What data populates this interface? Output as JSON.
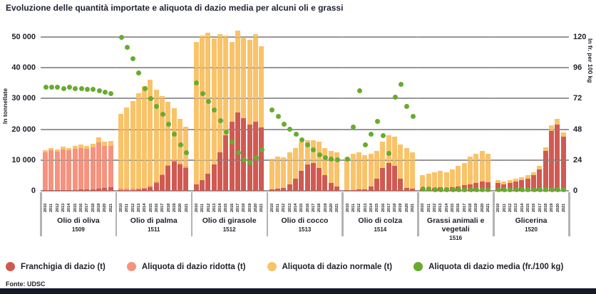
{
  "title": "Evoluzione delle quantità importate e aliquota di dazio media per alcuni oli e grassi",
  "source": "Fonte: UDSC",
  "colors": {
    "franchigia": "#cf5a52",
    "ridotta": "#f5937e",
    "normale": "#f9c36a",
    "media": "#67ab2f",
    "grid": "#9b9b9b",
    "footer_bar": "#141a29",
    "text": "#20222c"
  },
  "legend": [
    {
      "label": "Franchigia di dazio (t)",
      "color_key": "franchigia"
    },
    {
      "label": "Aliquota di dazio ridotta (t)",
      "color_key": "ridotta"
    },
    {
      "label": "Aliquota di dazio normale (t)",
      "color_key": "normale"
    },
    {
      "label": "Aliquota di dazio media (fr./100 kg)",
      "color_key": "media"
    }
  ],
  "chart_data": {
    "type": "bar",
    "stacked": true,
    "grid": true,
    "legend_position": "bottom",
    "left_axis": {
      "label": "In tonnellate",
      "ticks": [
        "50 000",
        "40 000",
        "30 000",
        "20 000",
        "10 000",
        "0"
      ],
      "max": 50000
    },
    "right_axis": {
      "label": "In fr. per 100 kg",
      "ticks": [
        "120",
        "96",
        "72",
        "48",
        "24",
        "0"
      ],
      "max": 120
    },
    "years": [
      "2010",
      "2011",
      "2012",
      "2013",
      "2014",
      "2015",
      "2016",
      "2017",
      "2018",
      "2019",
      "2020",
      "2021"
    ],
    "series_names": {
      "franchigia": "Franchigia di dazio (t)",
      "ridotta": "Aliquota di dazio ridotta (t)",
      "normale": "Aliquota di dazio normale (t)",
      "media": "Aliquota di dazio media (fr./100 kg)"
    },
    "groups": [
      {
        "label": "Olio di oliva",
        "code": "1509",
        "franchigia": [
          250,
          250,
          250,
          250,
          300,
          350,
          400,
          450,
          550,
          700,
          900,
          1100
        ],
        "ridotta": [
          12200,
          12900,
          12500,
          13100,
          12800,
          13300,
          13600,
          13100,
          13600,
          15100,
          13700,
          13500
        ],
        "normale": [
          700,
          800,
          750,
          900,
          850,
          1000,
          1100,
          1050,
          1150,
          1600,
          1300,
          1500
        ],
        "media": [
          81,
          81,
          81,
          80,
          81,
          80,
          80,
          79,
          79,
          78,
          77,
          76
        ]
      },
      {
        "label": "Olio di palma",
        "code": "1511",
        "franchigia": [
          200,
          200,
          300,
          400,
          600,
          1200,
          2500,
          5000,
          8000,
          9500,
          8500,
          7500
        ],
        "ridotta": [
          400,
          400,
          400,
          400,
          400,
          400,
          400,
          400,
          400,
          400,
          300,
          300
        ],
        "normale": [
          24500,
          26500,
          28500,
          31000,
          33000,
          34500,
          30000,
          25500,
          20500,
          17000,
          14500,
          13000
        ],
        "media": [
          120,
          112,
          103,
          92,
          80,
          72,
          66,
          60,
          52,
          44,
          36,
          30
        ]
      },
      {
        "label": "Olio di girasole",
        "code": "1512",
        "franchigia": [
          2000,
          3500,
          5500,
          8500,
          12500,
          18000,
          22500,
          25500,
          23500,
          21500,
          22500,
          20500
        ],
        "ridotta": [
          0,
          0,
          0,
          0,
          0,
          0,
          0,
          0,
          0,
          0,
          0,
          0
        ],
        "normale": [
          46500,
          47000,
          46000,
          41000,
          38500,
          32500,
          26000,
          26500,
          26500,
          27500,
          28500,
          26500
        ],
        "media": [
          84,
          76,
          70,
          63,
          55,
          46,
          38,
          30,
          24,
          22,
          26,
          32
        ]
      },
      {
        "label": "Olio di cocco",
        "code": "1513",
        "franchigia": [
          500,
          700,
          1000,
          2000,
          4000,
          6500,
          8500,
          9000,
          7500,
          5000,
          2500,
          1500
        ],
        "ridotta": [
          0,
          0,
          0,
          0,
          0,
          0,
          0,
          0,
          0,
          0,
          0,
          0
        ],
        "normale": [
          10000,
          10500,
          10000,
          10500,
          10000,
          9500,
          8000,
          7500,
          8500,
          9000,
          10500,
          11000
        ],
        "media": [
          63,
          58,
          52,
          48,
          44,
          40,
          36,
          32,
          28,
          26,
          25,
          24
        ]
      },
      {
        "label": "Olio di colza",
        "code": "1514",
        "franchigia": [
          300,
          300,
          400,
          500,
          1500,
          4000,
          7500,
          9000,
          8000,
          4000,
          1000,
          600
        ],
        "ridotta": [
          0,
          0,
          0,
          0,
          0,
          0,
          0,
          0,
          0,
          0,
          0,
          0
        ],
        "normale": [
          10700,
          11700,
          12100,
          11000,
          10500,
          9000,
          8500,
          9000,
          9500,
          11000,
          13000,
          12000
        ],
        "media": [
          25,
          50,
          78,
          36,
          44,
          54,
          43,
          29,
          73,
          83,
          66,
          58
        ]
      },
      {
        "label": "Grassi animali e vegetali",
        "code": "1516",
        "franchigia": [
          800,
          900,
          1000,
          1100,
          1000,
          1200,
          1500,
          1800,
          2200,
          2600,
          3000,
          2800
        ],
        "ridotta": [
          0,
          0,
          0,
          0,
          0,
          0,
          0,
          0,
          0,
          0,
          0,
          0
        ],
        "normale": [
          4200,
          4600,
          5000,
          5400,
          5000,
          5800,
          6500,
          7200,
          8800,
          9400,
          10000,
          9200
        ],
        "media": [
          1.5,
          1.2,
          1,
          1,
          1,
          1,
          0.8,
          0.8,
          0.8,
          0.8,
          0.8,
          0.8
        ]
      },
      {
        "label": "Glicerina",
        "code": "1520",
        "franchigia": [
          2500,
          2200,
          2600,
          3000,
          3500,
          4000,
          5000,
          7000,
          13000,
          19500,
          21500,
          17500
        ],
        "ridotta": [
          0,
          0,
          0,
          0,
          0,
          0,
          0,
          0,
          0,
          0,
          0,
          0
        ],
        "normale": [
          1000,
          800,
          900,
          1000,
          1000,
          1000,
          1000,
          1000,
          1200,
          1800,
          1800,
          1600
        ],
        "media": [
          1,
          1,
          1,
          1,
          1,
          1,
          1,
          1,
          1,
          1,
          1,
          1
        ]
      }
    ]
  }
}
